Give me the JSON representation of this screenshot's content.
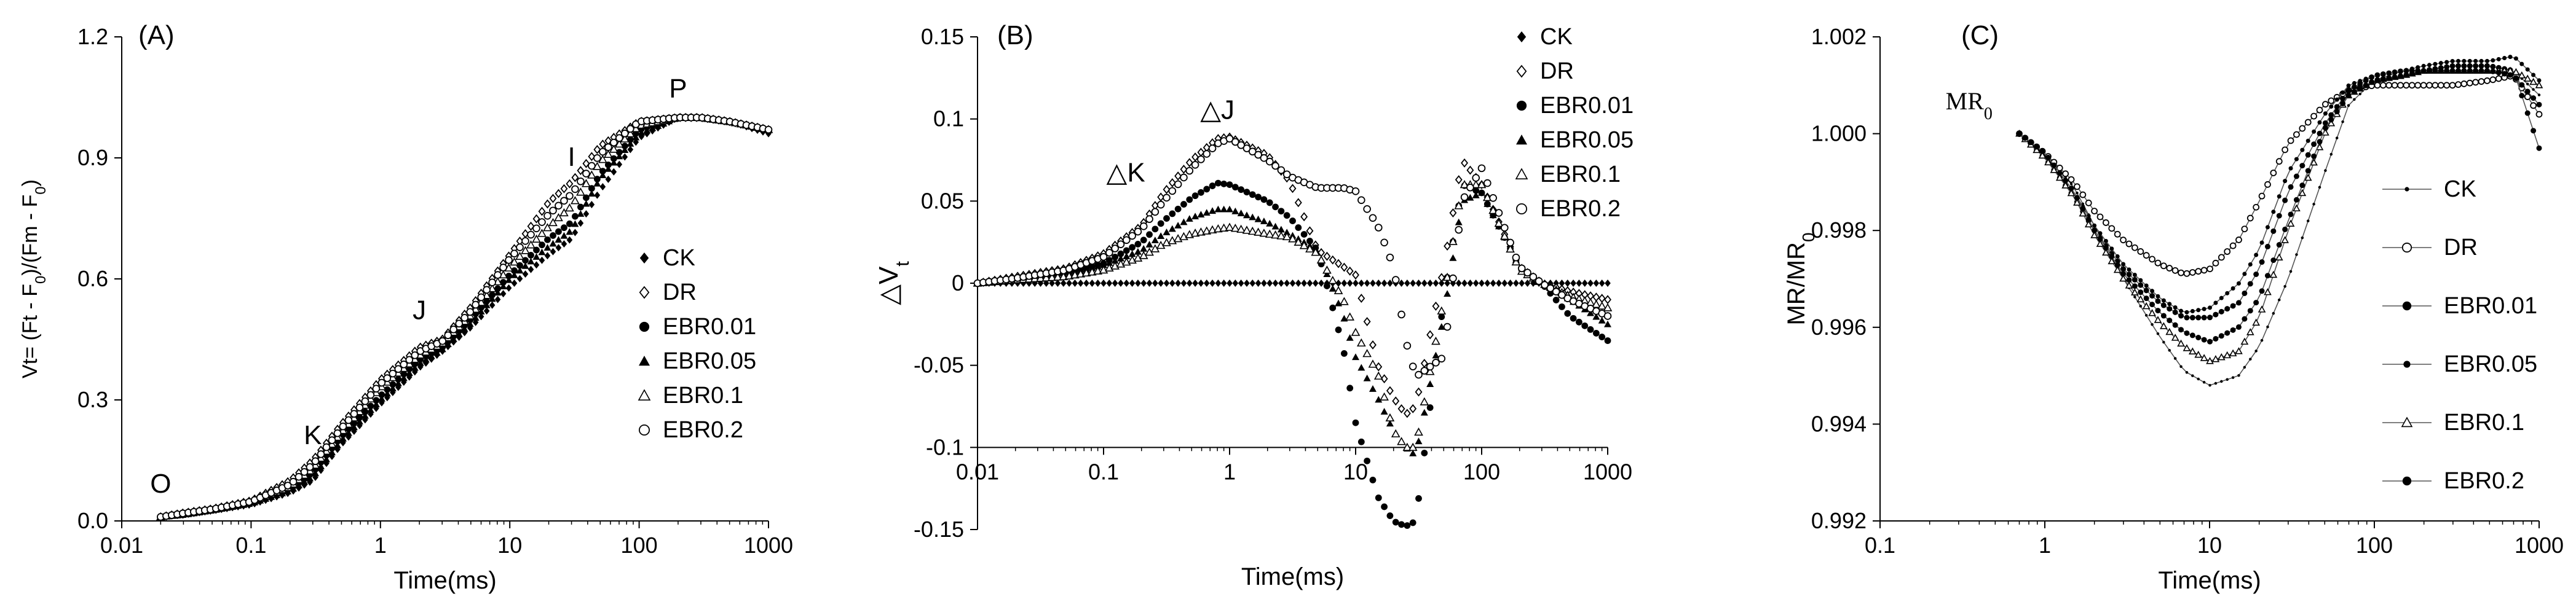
{
  "chart_data": [
    {
      "type": "scatter",
      "panel_label": "(A)",
      "title": "",
      "xlabel": "Time(ms)",
      "ylabel_parts": [
        "Vt= (Ft - F",
        "0",
        ")/(Fm - F",
        "0",
        ")"
      ],
      "xscale": "log",
      "xlim": [
        0.01,
        1000
      ],
      "ylim": [
        0.0,
        1.2
      ],
      "x_ticks": [
        0.01,
        0.1,
        1,
        10,
        100,
        1000
      ],
      "x_tick_labels": [
        "0.01",
        "0.1",
        "1",
        "10",
        "100",
        "1000"
      ],
      "y_ticks": [
        0.0,
        0.3,
        0.6,
        0.9,
        1.2
      ],
      "y_tick_labels": [
        "0.0",
        "0.3",
        "0.6",
        "0.9",
        "1.2"
      ],
      "legend_position": "right-middle",
      "annotations": [
        {
          "text": "O",
          "x": 0.02,
          "y": 0.07
        },
        {
          "text": "K",
          "x": 0.3,
          "y": 0.19
        },
        {
          "text": "J",
          "x": 2,
          "y": 0.5
        },
        {
          "text": "I",
          "x": 30,
          "y": 0.88
        },
        {
          "text": "P",
          "x": 200,
          "y": 1.05
        }
      ],
      "series": [
        {
          "name": "CK",
          "marker": "diamond-filled"
        },
        {
          "name": "DR",
          "marker": "diamond-open"
        },
        {
          "name": "EBR0.01",
          "marker": "circle-filled"
        },
        {
          "name": "EBR0.05",
          "marker": "triangle-filled"
        },
        {
          "name": "EBR0.1",
          "marker": "triangle-open"
        },
        {
          "name": "EBR0.2",
          "marker": "circle-open"
        }
      ],
      "x": [
        0.02,
        0.03,
        0.05,
        0.1,
        0.2,
        0.3,
        0.5,
        1,
        2,
        3,
        5,
        10,
        20,
        30,
        50,
        100,
        200,
        300,
        500,
        1000
      ],
      "values_by_series": {
        "CK": [
          0.01,
          0.015,
          0.025,
          0.04,
          0.07,
          0.1,
          0.19,
          0.29,
          0.38,
          0.42,
          0.48,
          0.58,
          0.66,
          0.7,
          0.82,
          0.95,
          1.0,
          1.0,
          0.99,
          0.96
        ],
        "DR": [
          0.01,
          0.02,
          0.03,
          0.05,
          0.1,
          0.15,
          0.24,
          0.35,
          0.43,
          0.45,
          0.53,
          0.66,
          0.79,
          0.84,
          0.93,
          0.99,
          1.0,
          1.0,
          0.99,
          0.97
        ],
        "EBR0.01": [
          0.01,
          0.015,
          0.027,
          0.045,
          0.08,
          0.12,
          0.21,
          0.31,
          0.4,
          0.43,
          0.5,
          0.61,
          0.7,
          0.74,
          0.86,
          0.97,
          1.0,
          1.0,
          0.99,
          0.97
        ],
        "EBR0.05": [
          0.01,
          0.015,
          0.026,
          0.043,
          0.075,
          0.11,
          0.2,
          0.3,
          0.39,
          0.425,
          0.49,
          0.6,
          0.68,
          0.72,
          0.85,
          0.96,
          1.0,
          1.0,
          0.99,
          0.97
        ],
        "EBR0.1": [
          0.01,
          0.018,
          0.028,
          0.047,
          0.085,
          0.13,
          0.22,
          0.33,
          0.41,
          0.44,
          0.51,
          0.63,
          0.73,
          0.78,
          0.89,
          0.98,
          1.0,
          1.0,
          0.99,
          0.97
        ],
        "EBR0.2": [
          0.01,
          0.019,
          0.029,
          0.048,
          0.09,
          0.14,
          0.23,
          0.34,
          0.42,
          0.445,
          0.52,
          0.65,
          0.76,
          0.81,
          0.91,
          0.99,
          1.0,
          1.0,
          0.99,
          0.97
        ]
      }
    },
    {
      "type": "scatter",
      "panel_label": "(B)",
      "title": "",
      "xlabel": "Time(ms)",
      "ylabel_parts": [
        "△V",
        "t"
      ],
      "xscale": "log",
      "xlim": [
        0.01,
        1000
      ],
      "ylim": [
        -0.15,
        0.15
      ],
      "x_axis_crosses_at": -0.1,
      "x_ticks": [
        0.01,
        0.1,
        1,
        10,
        100,
        1000
      ],
      "x_tick_labels": [
        "0.01",
        "0.1",
        "1",
        "10",
        "100",
        "1000"
      ],
      "y_ticks": [
        -0.15,
        -0.1,
        -0.05,
        0,
        0.05,
        0.1,
        0.15
      ],
      "y_tick_labels": [
        "-0.15",
        "-0.1",
        "-0.05",
        "0",
        "0.05",
        "0.1",
        "0.15"
      ],
      "legend_position": "top-right",
      "annotations": [
        {
          "text": "△K",
          "x": 0.15,
          "y": 0.062
        },
        {
          "text": "△J",
          "x": 0.8,
          "y": 0.1
        }
      ],
      "series": [
        {
          "name": "CK",
          "marker": "diamond-filled"
        },
        {
          "name": "DR",
          "marker": "diamond-open"
        },
        {
          "name": "EBR0.01",
          "marker": "circle-filled"
        },
        {
          "name": "EBR0.05",
          "marker": "triangle-filled"
        },
        {
          "name": "EBR0.1",
          "marker": "triangle-open"
        },
        {
          "name": "EBR0.2",
          "marker": "circle-open"
        }
      ],
      "x": [
        0.01,
        0.02,
        0.05,
        0.1,
        0.2,
        0.3,
        0.5,
        0.8,
        1,
        2,
        3,
        5,
        8,
        10,
        15,
        20,
        25,
        30,
        50,
        70,
        100,
        200,
        300,
        500,
        1000
      ],
      "values_by_series": {
        "CK": [
          0,
          0,
          0,
          0,
          0,
          0,
          0,
          0,
          0,
          0,
          0,
          0,
          0,
          0,
          0,
          0,
          0,
          0,
          0,
          0,
          0,
          0,
          0,
          0,
          0
        ],
        "DR": [
          0,
          0.004,
          0.009,
          0.018,
          0.035,
          0.055,
          0.075,
          0.088,
          0.089,
          0.078,
          0.062,
          0.02,
          0.01,
          0.005,
          -0.05,
          -0.07,
          -0.08,
          -0.075,
          0.01,
          0.075,
          0.06,
          0.01,
          0,
          -0.005,
          -0.01
        ],
        "EBR0.01": [
          0,
          0.002,
          0.006,
          0.012,
          0.025,
          0.038,
          0.052,
          0.061,
          0.06,
          0.05,
          0.04,
          0.02,
          -0.04,
          -0.085,
          -0.13,
          -0.145,
          -0.148,
          -0.145,
          -0.01,
          0.06,
          0.055,
          0.01,
          0,
          -0.02,
          -0.035
        ],
        "EBR0.05": [
          0,
          0.002,
          0.005,
          0.011,
          0.02,
          0.03,
          0.04,
          0.045,
          0.045,
          0.037,
          0.03,
          0.02,
          -0.02,
          -0.045,
          -0.07,
          -0.09,
          -0.1,
          -0.105,
          -0.02,
          0.05,
          0.055,
          0.01,
          0,
          -0.01,
          -0.025
        ],
        "EBR0.1": [
          0,
          0.002,
          0.004,
          0.008,
          0.016,
          0.024,
          0.03,
          0.033,
          0.034,
          0.03,
          0.028,
          0.018,
          -0.01,
          -0.03,
          -0.055,
          -0.09,
          -0.1,
          -0.1,
          -0.01,
          0.06,
          0.06,
          0.008,
          0,
          -0.008,
          -0.015
        ],
        "EBR0.2": [
          0,
          0.003,
          0.008,
          0.016,
          0.033,
          0.05,
          0.07,
          0.085,
          0.088,
          0.075,
          0.065,
          0.058,
          0.058,
          0.056,
          0.035,
          0.01,
          -0.035,
          -0.057,
          -0.045,
          0.05,
          0.07,
          0.01,
          0,
          -0.01,
          -0.02
        ]
      }
    },
    {
      "type": "line",
      "panel_label": "(C)",
      "title": "",
      "xlabel": "Time(ms)",
      "ylabel_parts": [
        "MR/MR",
        "0"
      ],
      "xscale": "log",
      "xlim": [
        0.1,
        1000
      ],
      "ylim": [
        0.992,
        1.002
      ],
      "x_ticks": [
        0.1,
        1,
        10,
        100,
        1000
      ],
      "x_tick_labels": [
        "0.1",
        "1",
        "10",
        "100",
        "1000"
      ],
      "y_ticks": [
        0.992,
        0.994,
        0.996,
        0.998,
        1.0,
        1.002
      ],
      "y_tick_labels": [
        "0.992",
        "0.994",
        "0.996",
        "0.998",
        "1.000",
        "1.002"
      ],
      "legend_position": "right-middle",
      "annotations": [
        {
          "text_parts": [
            "MR",
            "0"
          ],
          "x": 0.25,
          "y": 1.0005
        }
      ],
      "series": [
        {
          "name": "CK",
          "marker": "small-dot"
        },
        {
          "name": "DR",
          "marker": "open-circle"
        },
        {
          "name": "EBR0.01",
          "marker": "filled-circle"
        },
        {
          "name": "EBR0.05",
          "marker": "filled-dot"
        },
        {
          "name": "EBR0.1",
          "marker": "triangle-open"
        },
        {
          "name": "EBR0.2",
          "marker": "filled-circle"
        }
      ],
      "x": [
        0.7,
        1,
        1.5,
        2,
        3,
        5,
        7,
        10,
        15,
        20,
        30,
        50,
        70,
        100,
        150,
        200,
        300,
        500,
        700,
        1000
      ],
      "values_by_series": {
        "CK": [
          1.0,
          0.9996,
          0.9989,
          0.9981,
          0.997,
          0.9958,
          0.9951,
          0.9948,
          0.995,
          0.9956,
          0.997,
          0.9992,
          1.0006,
          1.0011,
          1.0013,
          1.0013,
          1.0014,
          1.0014,
          1.0013,
          1.0008
        ],
        "DR": [
          1.0,
          0.9996,
          0.999,
          0.9984,
          0.9978,
          0.9973,
          0.9971,
          0.9972,
          0.9978,
          0.9986,
          0.9998,
          1.0006,
          1.0009,
          1.001,
          1.001,
          1.001,
          1.001,
          1.0011,
          1.0012,
          1.0004
        ],
        "EBR0.01": [
          1.0,
          0.9995,
          0.9987,
          0.998,
          0.9972,
          0.9965,
          0.9962,
          0.9962,
          0.9965,
          0.9972,
          0.9988,
          1.0002,
          1.0009,
          1.0012,
          1.0013,
          1.0013,
          1.0014,
          1.0014,
          1.0013,
          0.9997
        ],
        "EBR0.05": [
          1.0,
          0.9996,
          0.9988,
          0.9981,
          0.9973,
          0.9966,
          0.9963,
          0.9964,
          0.9969,
          0.9976,
          0.9992,
          1.0004,
          1.001,
          1.0012,
          1.0013,
          1.0014,
          1.0015,
          1.0015,
          1.0016,
          1.0011
        ],
        "EBR0.1": [
          1.0,
          0.9995,
          0.9987,
          0.9979,
          0.997,
          0.9961,
          0.9956,
          0.9953,
          0.9955,
          0.9962,
          0.998,
          1.0,
          1.0008,
          1.0011,
          1.0012,
          1.0013,
          1.0013,
          1.0013,
          1.0013,
          1.001
        ],
        "EBR0.2": [
          1.0,
          0.9996,
          0.9988,
          0.998,
          0.9971,
          0.9963,
          0.9959,
          0.9957,
          0.996,
          0.9966,
          0.9982,
          1.0001,
          1.0008,
          1.0011,
          1.0012,
          1.0013,
          1.0013,
          1.0013,
          1.0012,
          1.0006
        ]
      }
    }
  ]
}
